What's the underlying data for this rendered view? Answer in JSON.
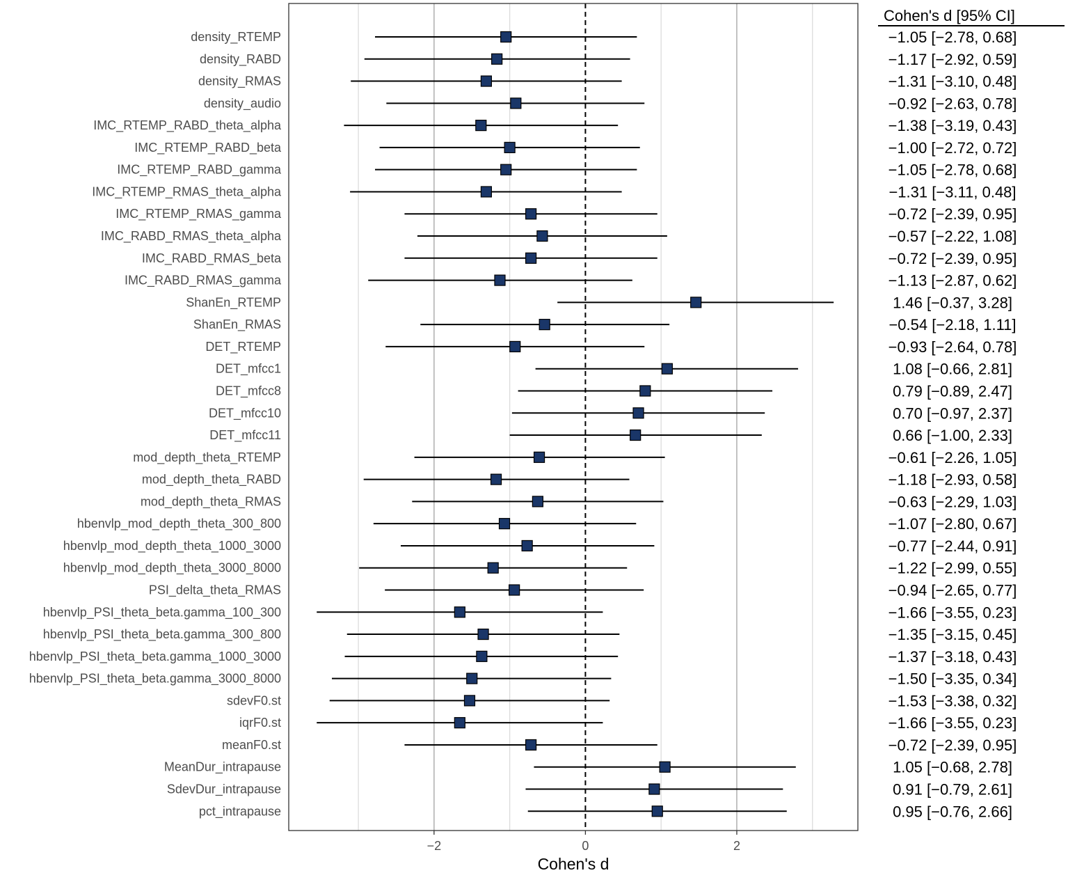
{
  "chart_data": {
    "type": "forest",
    "xlabel": "Cohen's d",
    "table_header": "Cohen's d [95% CI]",
    "xlim": [
      -3.92,
      3.6
    ],
    "xticks": [
      -2,
      0,
      2
    ],
    "xtick_labels": [
      "−2",
      "0",
      "2"
    ],
    "minor_gridlines": [
      -3,
      -1,
      1,
      3
    ],
    "reference_line": 0,
    "colors": {
      "marker": "#1a3668",
      "line": "#000000",
      "grid_major": "#b3b3b3",
      "grid_minor": "#d9d9d9"
    },
    "rows": [
      {
        "label": "density_RTEMP",
        "d": -1.05,
        "lo": -2.78,
        "hi": 0.68,
        "ci_text": "−1.05 [−2.78, 0.68]"
      },
      {
        "label": "density_RABD",
        "d": -1.17,
        "lo": -2.92,
        "hi": 0.59,
        "ci_text": "−1.17 [−2.92, 0.59]"
      },
      {
        "label": "density_RMAS",
        "d": -1.31,
        "lo": -3.1,
        "hi": 0.48,
        "ci_text": "−1.31 [−3.10, 0.48]"
      },
      {
        "label": "density_audio",
        "d": -0.92,
        "lo": -2.63,
        "hi": 0.78,
        "ci_text": "−0.92 [−2.63, 0.78]"
      },
      {
        "label": "IMC_RTEMP_RABD_theta_alpha",
        "d": -1.38,
        "lo": -3.19,
        "hi": 0.43,
        "ci_text": "−1.38 [−3.19, 0.43]"
      },
      {
        "label": "IMC_RTEMP_RABD_beta",
        "d": -1.0,
        "lo": -2.72,
        "hi": 0.72,
        "ci_text": "−1.00 [−2.72, 0.72]"
      },
      {
        "label": "IMC_RTEMP_RABD_gamma",
        "d": -1.05,
        "lo": -2.78,
        "hi": 0.68,
        "ci_text": "−1.05 [−2.78, 0.68]"
      },
      {
        "label": "IMC_RTEMP_RMAS_theta_alpha",
        "d": -1.31,
        "lo": -3.11,
        "hi": 0.48,
        "ci_text": "−1.31 [−3.11, 0.48]"
      },
      {
        "label": "IMC_RTEMP_RMAS_gamma",
        "d": -0.72,
        "lo": -2.39,
        "hi": 0.95,
        "ci_text": "−0.72 [−2.39, 0.95]"
      },
      {
        "label": "IMC_RABD_RMAS_theta_alpha",
        "d": -0.57,
        "lo": -2.22,
        "hi": 1.08,
        "ci_text": "−0.57 [−2.22, 1.08]"
      },
      {
        "label": "IMC_RABD_RMAS_beta",
        "d": -0.72,
        "lo": -2.39,
        "hi": 0.95,
        "ci_text": "−0.72 [−2.39, 0.95]"
      },
      {
        "label": "IMC_RABD_RMAS_gamma",
        "d": -1.13,
        "lo": -2.87,
        "hi": 0.62,
        "ci_text": "−1.13 [−2.87, 0.62]"
      },
      {
        "label": "ShanEn_RTEMP",
        "d": 1.46,
        "lo": -0.37,
        "hi": 3.28,
        "ci_text": "1.46 [−0.37, 3.28]"
      },
      {
        "label": "ShanEn_RMAS",
        "d": -0.54,
        "lo": -2.18,
        "hi": 1.11,
        "ci_text": "−0.54 [−2.18, 1.11]"
      },
      {
        "label": "DET_RTEMP",
        "d": -0.93,
        "lo": -2.64,
        "hi": 0.78,
        "ci_text": "−0.93 [−2.64, 0.78]"
      },
      {
        "label": "DET_mfcc1",
        "d": 1.08,
        "lo": -0.66,
        "hi": 2.81,
        "ci_text": "1.08 [−0.66, 2.81]"
      },
      {
        "label": "DET_mfcc8",
        "d": 0.79,
        "lo": -0.89,
        "hi": 2.47,
        "ci_text": "0.79 [−0.89, 2.47]"
      },
      {
        "label": "DET_mfcc10",
        "d": 0.7,
        "lo": -0.97,
        "hi": 2.37,
        "ci_text": "0.70 [−0.97, 2.37]"
      },
      {
        "label": "DET_mfcc11",
        "d": 0.66,
        "lo": -1.0,
        "hi": 2.33,
        "ci_text": "0.66 [−1.00, 2.33]"
      },
      {
        "label": "mod_depth_theta_RTEMP",
        "d": -0.61,
        "lo": -2.26,
        "hi": 1.05,
        "ci_text": "−0.61 [−2.26, 1.05]"
      },
      {
        "label": "mod_depth_theta_RABD",
        "d": -1.18,
        "lo": -2.93,
        "hi": 0.58,
        "ci_text": "−1.18 [−2.93, 0.58]"
      },
      {
        "label": "mod_depth_theta_RMAS",
        "d": -0.63,
        "lo": -2.29,
        "hi": 1.03,
        "ci_text": "−0.63 [−2.29, 1.03]"
      },
      {
        "label": "hbenvlp_mod_depth_theta_300_800",
        "d": -1.07,
        "lo": -2.8,
        "hi": 0.67,
        "ci_text": "−1.07 [−2.80, 0.67]"
      },
      {
        "label": "hbenvlp_mod_depth_theta_1000_3000",
        "d": -0.77,
        "lo": -2.44,
        "hi": 0.91,
        "ci_text": "−0.77 [−2.44, 0.91]"
      },
      {
        "label": "hbenvlp_mod_depth_theta_3000_8000",
        "d": -1.22,
        "lo": -2.99,
        "hi": 0.55,
        "ci_text": "−1.22 [−2.99, 0.55]"
      },
      {
        "label": "PSI_delta_theta_RMAS",
        "d": -0.94,
        "lo": -2.65,
        "hi": 0.77,
        "ci_text": "−0.94 [−2.65, 0.77]"
      },
      {
        "label": "hbenvlp_PSI_theta_beta.gamma_100_300",
        "d": -1.66,
        "lo": -3.55,
        "hi": 0.23,
        "ci_text": "−1.66 [−3.55, 0.23]"
      },
      {
        "label": "hbenvlp_PSI_theta_beta.gamma_300_800",
        "d": -1.35,
        "lo": -3.15,
        "hi": 0.45,
        "ci_text": "−1.35 [−3.15, 0.45]"
      },
      {
        "label": "hbenvlp_PSI_theta_beta.gamma_1000_3000",
        "d": -1.37,
        "lo": -3.18,
        "hi": 0.43,
        "ci_text": "−1.37 [−3.18, 0.43]"
      },
      {
        "label": "hbenvlp_PSI_theta_beta.gamma_3000_8000",
        "d": -1.5,
        "lo": -3.35,
        "hi": 0.34,
        "ci_text": "−1.50 [−3.35, 0.34]"
      },
      {
        "label": "sdevF0.st",
        "d": -1.53,
        "lo": -3.38,
        "hi": 0.32,
        "ci_text": "−1.53 [−3.38, 0.32]"
      },
      {
        "label": "iqrF0.st",
        "d": -1.66,
        "lo": -3.55,
        "hi": 0.23,
        "ci_text": "−1.66 [−3.55, 0.23]"
      },
      {
        "label": "meanF0.st",
        "d": -0.72,
        "lo": -2.39,
        "hi": 0.95,
        "ci_text": "−0.72 [−2.39, 0.95]"
      },
      {
        "label": "MeanDur_intrapause",
        "d": 1.05,
        "lo": -0.68,
        "hi": 2.78,
        "ci_text": "1.05 [−0.68, 2.78]"
      },
      {
        "label": "SdevDur_intrapause",
        "d": 0.91,
        "lo": -0.79,
        "hi": 2.61,
        "ci_text": "0.91 [−0.79, 2.61]"
      },
      {
        "label": "pct_intrapause",
        "d": 0.95,
        "lo": -0.76,
        "hi": 2.66,
        "ci_text": "0.95 [−0.76, 2.66]"
      }
    ]
  }
}
